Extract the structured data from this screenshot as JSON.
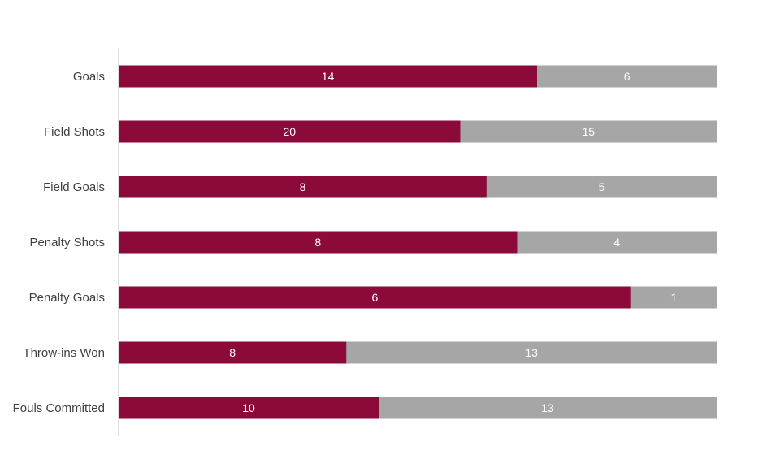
{
  "chart_data": {
    "type": "bar",
    "orientation": "horizontal",
    "stacking": "percent",
    "categories": [
      "Goals",
      "Field Shots",
      "Field Goals",
      "Penalty Shots",
      "Penalty Goals",
      "Throw-ins Won",
      "Fouls Committed"
    ],
    "series": [
      {
        "values": [
          14,
          20,
          8,
          8,
          6,
          8,
          10
        ],
        "color": "#8B0A3A",
        "label_color": "#FFFFFF"
      },
      {
        "values": [
          6,
          15,
          5,
          4,
          1,
          13,
          13
        ],
        "color": "#A6A6A6",
        "label_color": "#FFFFFF"
      }
    ],
    "title": "",
    "xlabel": "",
    "ylabel": "",
    "grid": false,
    "legend": "none",
    "data_labels": true
  }
}
